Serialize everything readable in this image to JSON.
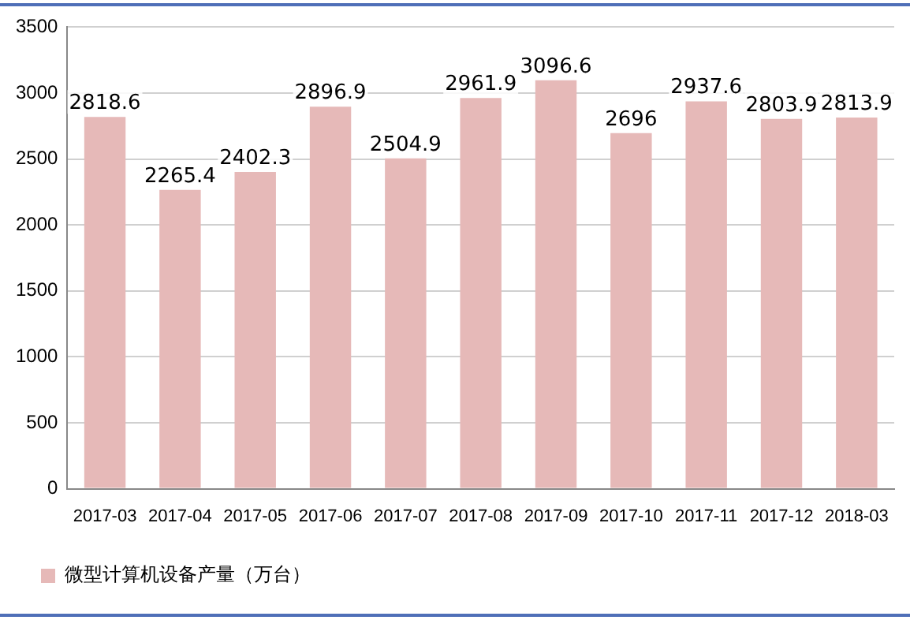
{
  "chart_data": {
    "type": "bar",
    "categories": [
      "2017-03",
      "2017-04",
      "2017-05",
      "2017-06",
      "2017-07",
      "2017-08",
      "2017-09",
      "2017-10",
      "2017-11",
      "2017-12",
      "2018-03"
    ],
    "series": [
      {
        "name": "微型计算机设备产量（万台）",
        "color": "#e6b9b8",
        "values": [
          2818.6,
          2265.4,
          2402.3,
          2896.9,
          2504.9,
          2961.9,
          3096.6,
          2696,
          2937.6,
          2803.9,
          2813.9
        ]
      }
    ],
    "ylim": [
      0,
      3500
    ],
    "yticks": [
      0,
      500,
      1000,
      1500,
      2000,
      2500,
      3000,
      3500
    ],
    "grid": "y",
    "legend": "bottom left",
    "data_labels": true
  }
}
